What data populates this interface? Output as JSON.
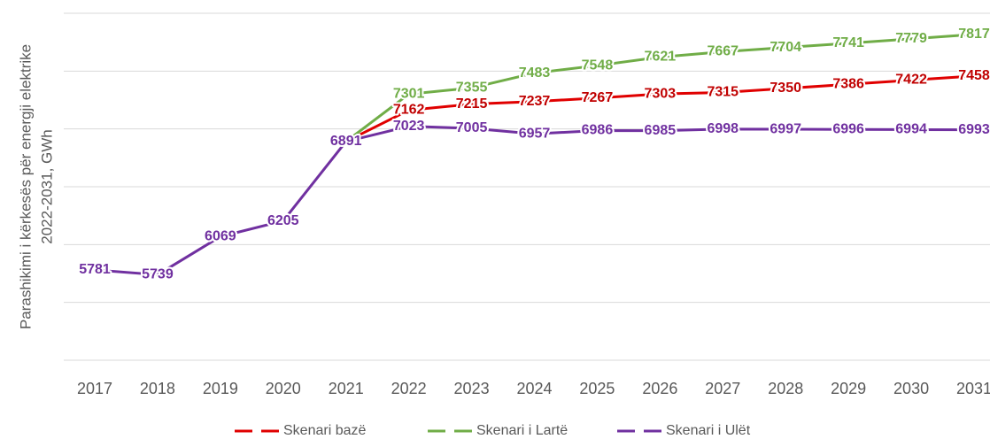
{
  "chart_data": {
    "type": "line",
    "ylabel": [
      "Parashikimi i kërkesës për energji elektrike",
      "2022-2031, GWh"
    ],
    "categories": [
      "2017",
      "2018",
      "2019",
      "2020",
      "2021",
      "2022",
      "2023",
      "2024",
      "2025",
      "2026",
      "2027",
      "2028",
      "2029",
      "2030",
      "2031"
    ],
    "ylim": [
      5000,
      8000
    ],
    "yticks": [
      5000,
      5500,
      6000,
      6500,
      7000,
      7500,
      8000
    ],
    "grid": true,
    "legend": "bottom",
    "series": [
      {
        "name": "Skenari bazë",
        "color": "#e00000",
        "label_color": "#c00000",
        "values": [
          null,
          null,
          null,
          null,
          6891,
          7162,
          7215,
          7237,
          7267,
          7303,
          7315,
          7350,
          7386,
          7422,
          7458
        ]
      },
      {
        "name": "Skenari i Lartë",
        "color": "#70ad47",
        "label_color": "#70ad47",
        "values": [
          null,
          null,
          null,
          null,
          6891,
          7301,
          7355,
          7483,
          7548,
          7621,
          7667,
          7704,
          7741,
          7779,
          7817
        ]
      },
      {
        "name": "Skenari i Ulët",
        "color": "#7030a0",
        "label_color": "#7030a0",
        "values": [
          5781,
          5739,
          6069,
          6205,
          6891,
          7023,
          7005,
          6957,
          6986,
          6985,
          6998,
          6997,
          6996,
          6994,
          6993
        ]
      }
    ]
  }
}
